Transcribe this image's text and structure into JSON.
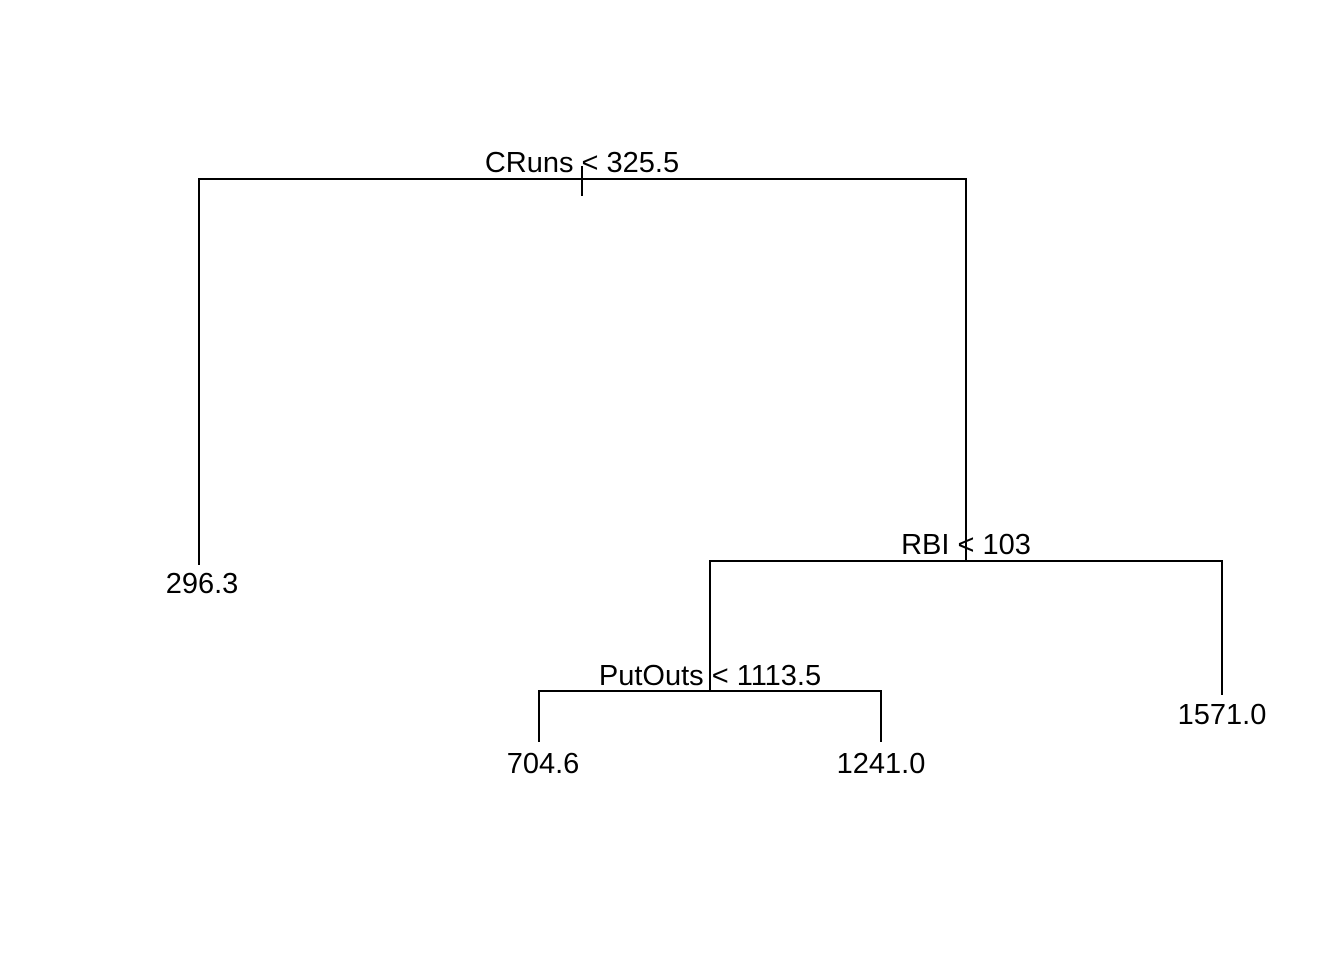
{
  "tree": {
    "root": {
      "split": "CRuns < 325.5",
      "left_leaf": "296.3",
      "right": {
        "split": "RBI < 103",
        "left": {
          "split": "PutOuts < 1113.5",
          "left_leaf": "704.6",
          "right_leaf": "1241.0"
        },
        "right_leaf": "1571.0"
      }
    }
  }
}
